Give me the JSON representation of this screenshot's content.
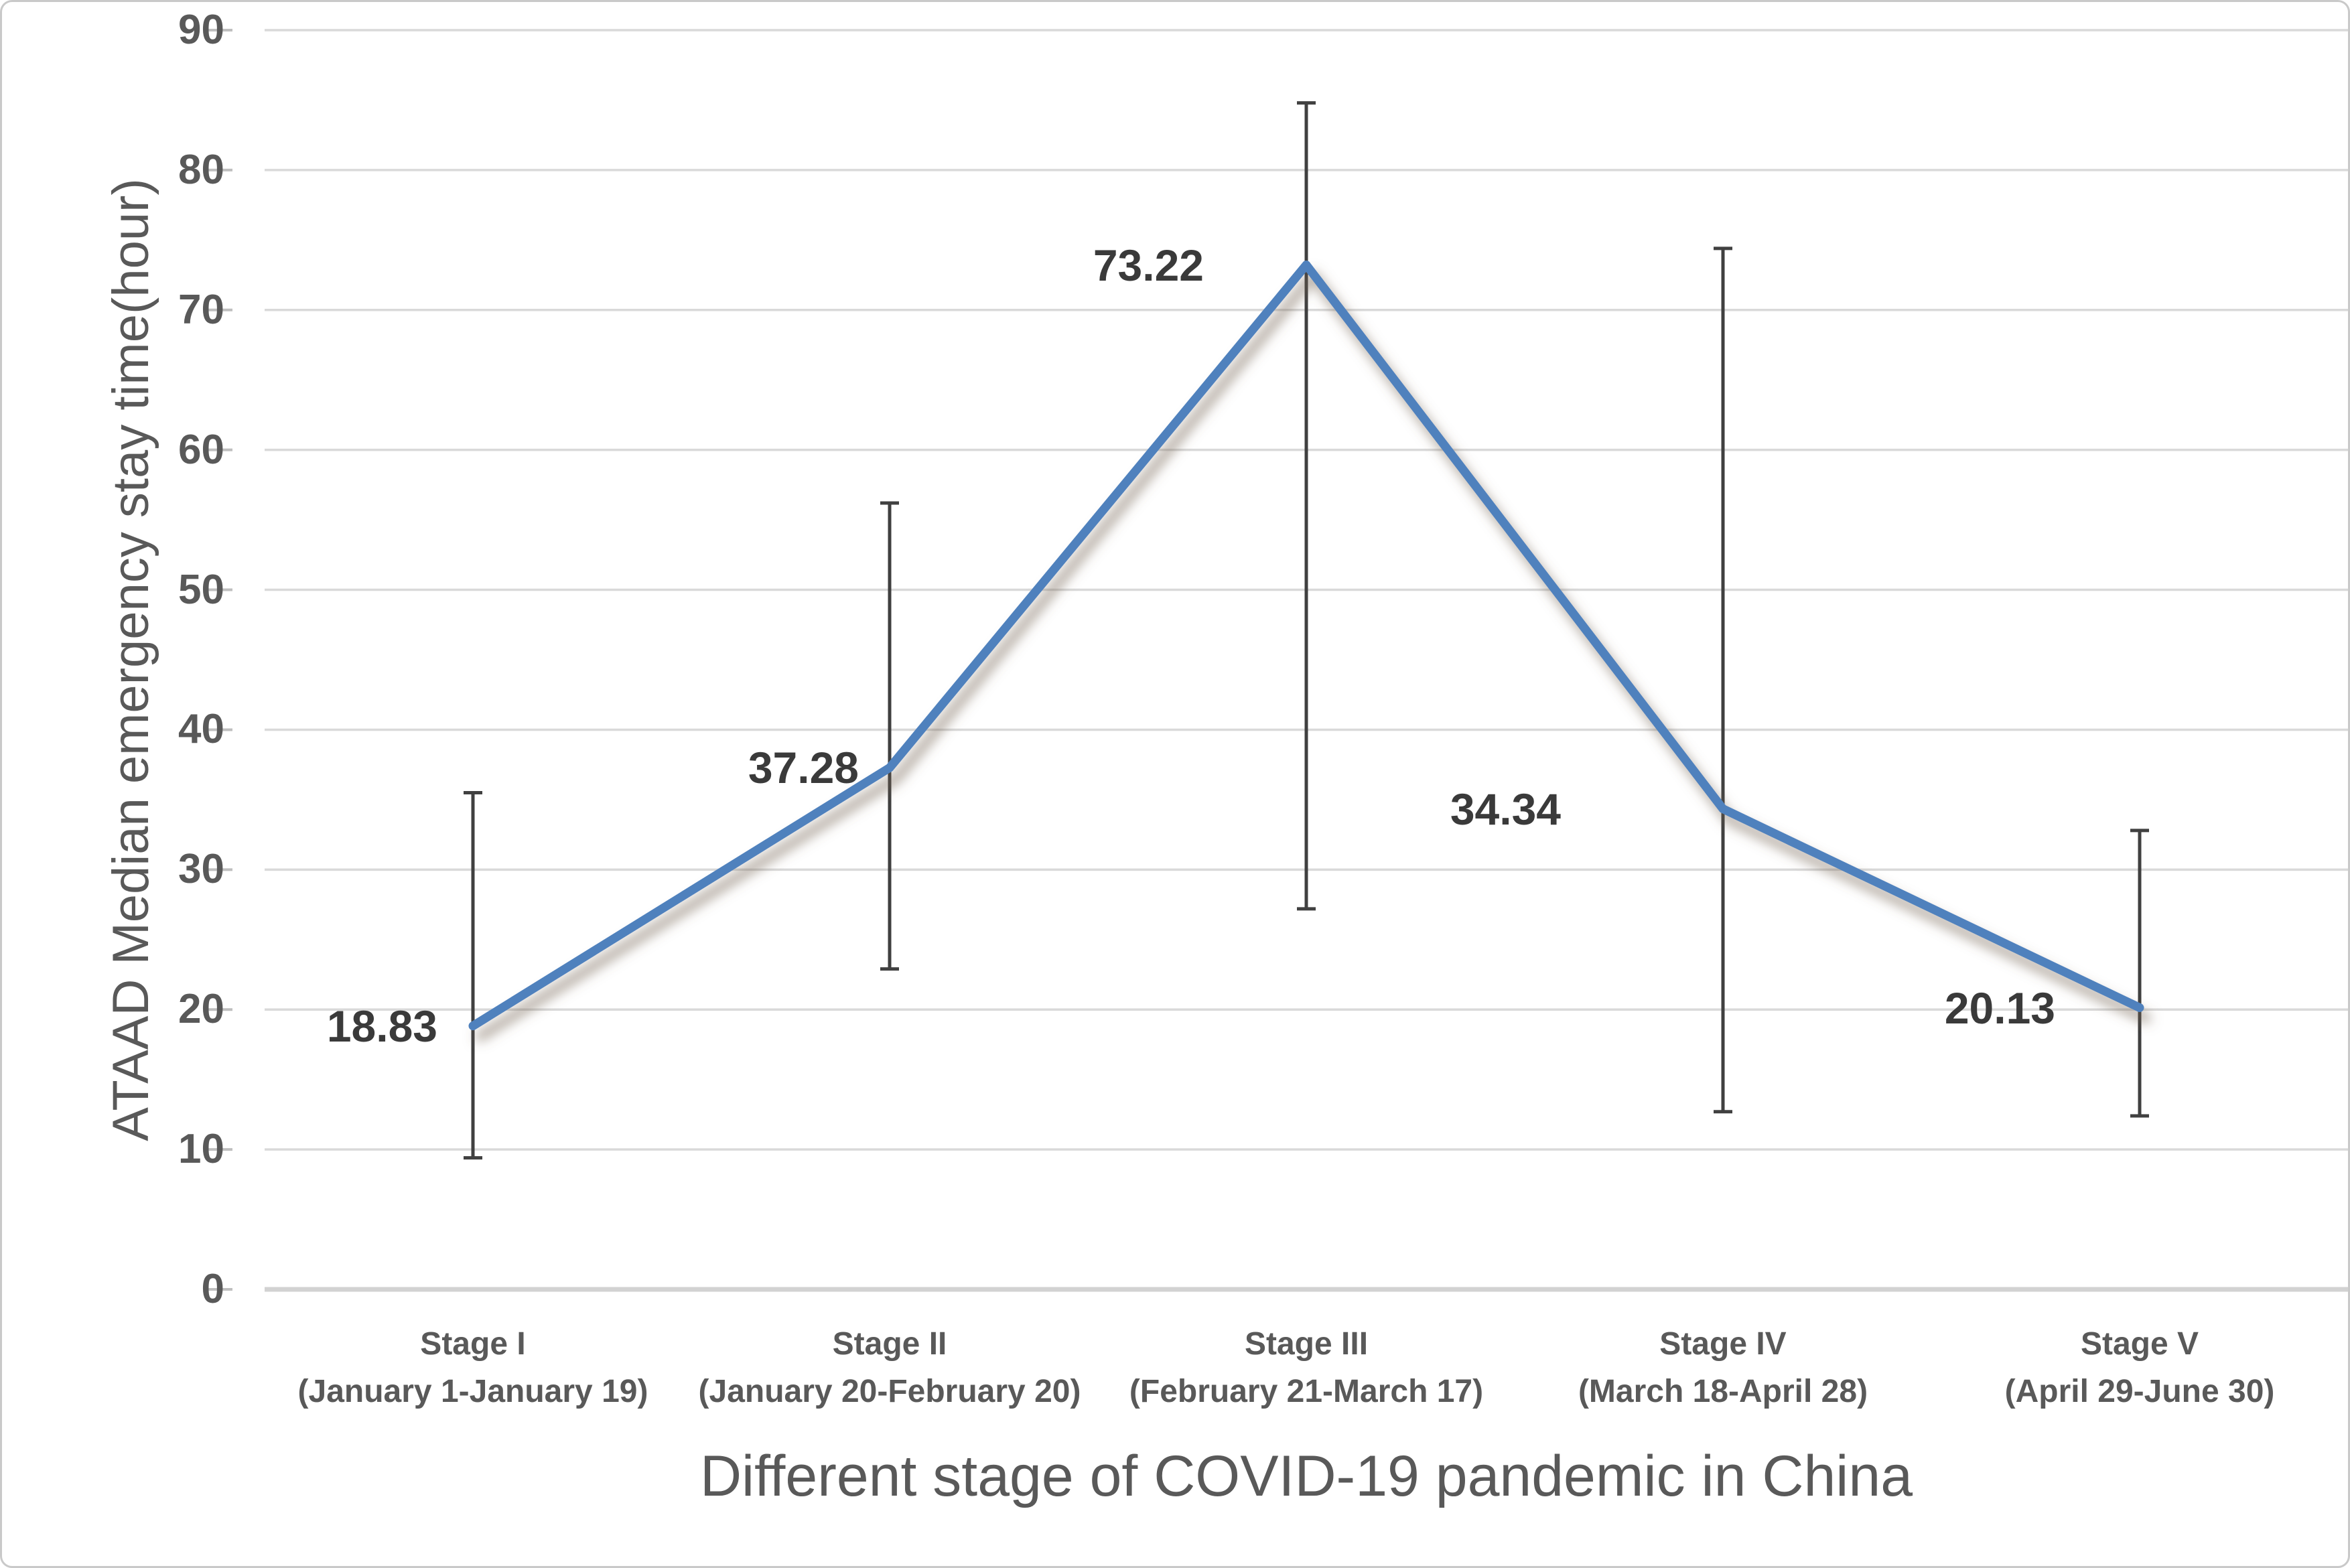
{
  "chart_data": {
    "type": "line",
    "title": "",
    "xlabel": "Different stage of COVID-19 pandemic in China",
    "ylabel": "ATAAD Median emergency stay time(hour)",
    "ylim": [
      0,
      90
    ],
    "ytick_interval": 10,
    "y_tick_labels": [
      "0",
      "10",
      "20",
      "30",
      "40",
      "50",
      "60",
      "70",
      "80",
      "90"
    ],
    "grid": "horizontal",
    "legend_position": "none",
    "categories": [
      "Stage I",
      "Stage II",
      "Stage III",
      "Stage IV",
      "Stage V"
    ],
    "category_sublabels": [
      "(January 1-January 19)",
      "(January 20-February 20)",
      "(February 21-March 17)",
      "(March 18-April 28)",
      "(April 29-June 30)"
    ],
    "series": [
      {
        "name": "ATAAD Median emergency stay time",
        "values": [
          18.83,
          37.28,
          73.22,
          34.34,
          20.13
        ]
      }
    ],
    "data_labels": [
      "18.83",
      "37.28",
      "73.22",
      "34.34",
      "20.13"
    ],
    "error_bars": {
      "low": [
        9.4,
        22.9,
        27.2,
        12.7,
        12.4
      ],
      "high": [
        35.5,
        56.2,
        84.8,
        74.4,
        32.8
      ]
    },
    "colors": {
      "line": "#4F81BD",
      "line_shadow": "#6E5F4E",
      "error_bar": "#404040",
      "gridline": "#D9D9D9",
      "axis_line": "#D2D2D2",
      "tick_mark": "#BFBFBF",
      "tick_label": "#595959",
      "data_label": "#3A3A3A",
      "axis_title": "#595959",
      "border": "#C9C9C9",
      "background": "#FFFFFF"
    }
  }
}
